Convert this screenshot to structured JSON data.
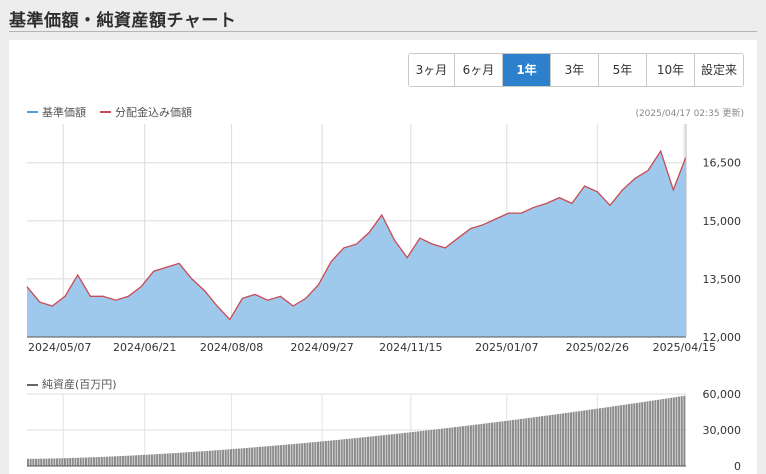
{
  "page_title": "基準価額・純資産額チャート",
  "periods": [
    "3ヶ月",
    "6ヶ月",
    "1年",
    "3年",
    "5年",
    "10年",
    "設定来"
  ],
  "active_period": "1年",
  "legend": {
    "nav": "基準価額",
    "nav_color": "#4c9fdc",
    "dividend": "分配金込み価額",
    "dividend_color": "#c94a52"
  },
  "updated": "(2025/04/17 02:35 更新)",
  "assets_label": "純資産(百万円)",
  "chart_data": [
    {
      "type": "area",
      "x": [
        "2024/04/17",
        "2024/04/24",
        "2024/05/01",
        "2024/05/08",
        "2024/05/15",
        "2024/05/22",
        "2024/05/29",
        "2024/06/05",
        "2024/06/12",
        "2024/06/19",
        "2024/06/26",
        "2024/07/03",
        "2024/07/10",
        "2024/07/17",
        "2024/07/24",
        "2024/07/31",
        "2024/08/07",
        "2024/08/14",
        "2024/08/21",
        "2024/08/28",
        "2024/09/04",
        "2024/09/11",
        "2024/09/18",
        "2024/09/25",
        "2024/10/02",
        "2024/10/09",
        "2024/10/16",
        "2024/10/23",
        "2024/10/30",
        "2024/11/06",
        "2024/11/13",
        "2024/11/20",
        "2024/11/27",
        "2024/12/04",
        "2024/12/11",
        "2024/12/18",
        "2024/12/25",
        "2025/01/01",
        "2025/01/08",
        "2025/01/15",
        "2025/01/22",
        "2025/01/29",
        "2025/02/05",
        "2025/02/12",
        "2025/02/19",
        "2025/02/26",
        "2025/03/05",
        "2025/03/12",
        "2025/03/19",
        "2025/03/26",
        "2025/04/02",
        "2025/04/09",
        "2025/04/16"
      ],
      "series": [
        {
          "name": "基準価額",
          "values": [
            13300,
            12900,
            12800,
            13050,
            13600,
            13050,
            13050,
            12950,
            13050,
            13300,
            13700,
            13800,
            13900,
            13500,
            13200,
            12800,
            12450,
            13000,
            13100,
            12950,
            13050,
            12800,
            13000,
            13350,
            13950,
            14300,
            14400,
            14700,
            15150,
            14500,
            14050,
            14550,
            14400,
            14300,
            14550,
            14800,
            14900,
            15050,
            15200,
            15200,
            15350,
            15450,
            15600,
            15450,
            15900,
            15750,
            15400,
            15800,
            16100,
            16300,
            16800,
            15800,
            16650
          ]
        },
        {
          "name": "分配金込み価額",
          "values": [
            13300,
            12900,
            12800,
            13050,
            13600,
            13050,
            13050,
            12950,
            13050,
            13300,
            13700,
            13800,
            13900,
            13500,
            13200,
            12800,
            12450,
            13000,
            13100,
            12950,
            13050,
            12800,
            13000,
            13350,
            13950,
            14300,
            14400,
            14700,
            15150,
            14500,
            14050,
            14550,
            14400,
            14300,
            14550,
            14800,
            14900,
            15050,
            15200,
            15200,
            15350,
            15450,
            15600,
            15450,
            15900,
            15750,
            15400,
            15800,
            16100,
            16300,
            16800,
            15800,
            16650
          ]
        }
      ],
      "x_ticks": [
        "2024/05/07",
        "2024/06/21",
        "2024/08/08",
        "2024/09/27",
        "2024/11/15",
        "2025/01/07",
        "2025/02/26",
        "2025/04/15"
      ],
      "y_ticks": [
        "16,500",
        "15,000",
        "13,500",
        "12,000"
      ],
      "ylim": [
        12000,
        17500
      ]
    },
    {
      "type": "bar",
      "title": "純資産(百万円)",
      "x_range": [
        "2024/04/17",
        "2025/04/16"
      ],
      "values_start": 6000,
      "values_end": 58500,
      "y_ticks": [
        "60,000",
        "30,000",
        "0"
      ],
      "ylim": [
        0,
        60000
      ]
    }
  ]
}
